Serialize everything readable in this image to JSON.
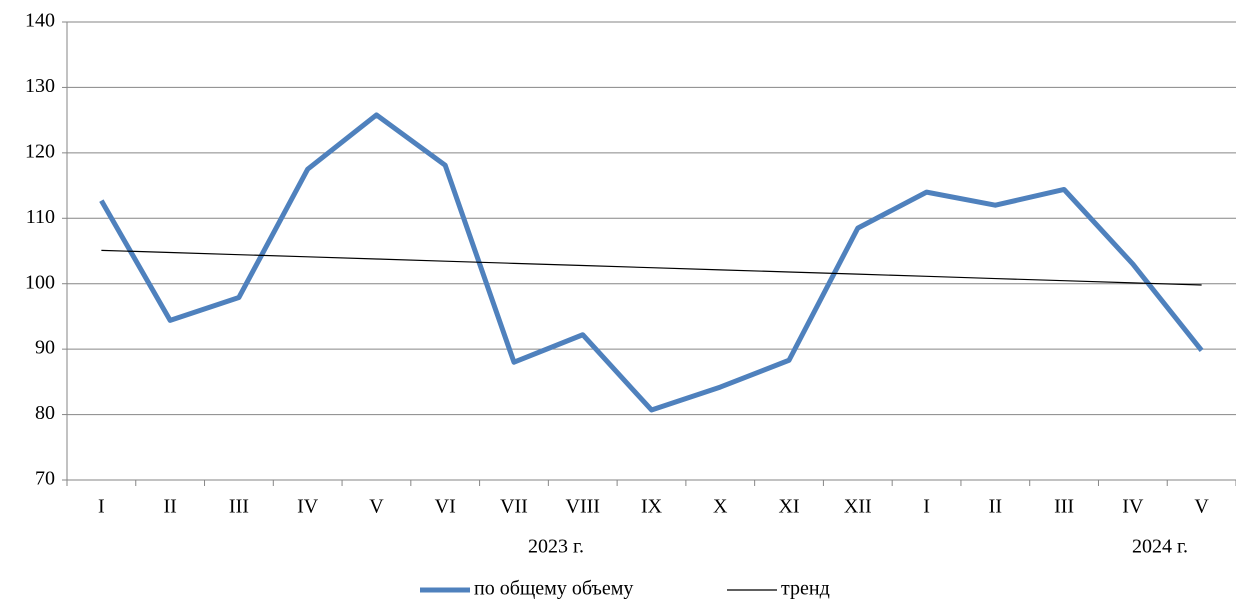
{
  "chart_data": {
    "type": "line",
    "categories": [
      "I",
      "II",
      "III",
      "IV",
      "V",
      "VI",
      "VII",
      "VIII",
      "IX",
      "X",
      "XI",
      "XII",
      "I",
      "II",
      "III",
      "IV",
      "V"
    ],
    "series": [
      {
        "name": "по общему объему",
        "color": "#4f81bd",
        "values": [
          112.7,
          94.4,
          97.9,
          117.5,
          125.8,
          118.1,
          88.0,
          92.2,
          80.7,
          84.2,
          88.3,
          108.5,
          114.0,
          112.0,
          114.4,
          103.0,
          89.8
        ]
      },
      {
        "name": "тренд",
        "color": "#000000",
        "values": [
          105.1,
          104.77,
          104.44,
          104.11,
          103.78,
          103.44,
          103.11,
          102.78,
          102.45,
          102.12,
          101.79,
          101.46,
          101.13,
          100.79,
          100.46,
          100.13,
          99.8
        ]
      }
    ],
    "annotations": [
      "2023 г.",
      "2024 г."
    ],
    "ylim": [
      70,
      140
    ],
    "yticks": [
      70,
      80,
      90,
      100,
      110,
      120,
      130,
      140
    ],
    "grid": true,
    "legend": "bottom"
  }
}
